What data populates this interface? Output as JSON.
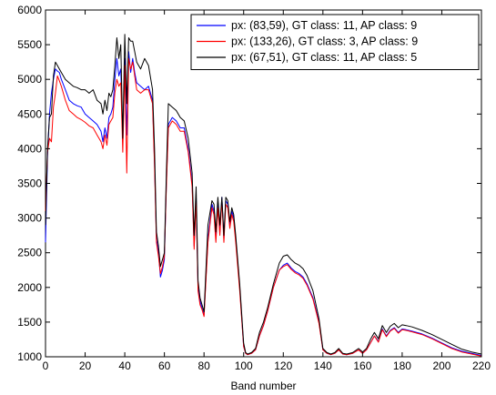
{
  "chart_data": {
    "type": "line",
    "xlabel": "Band number",
    "ylabel": "",
    "title": "",
    "xlim": [
      0,
      220
    ],
    "ylim": [
      1000,
      6000
    ],
    "xticks": [
      0,
      20,
      40,
      60,
      80,
      100,
      120,
      140,
      160,
      180,
      200,
      220
    ],
    "yticks": [
      1000,
      1500,
      2000,
      2500,
      3000,
      3500,
      4000,
      4500,
      5000,
      5500,
      6000
    ],
    "grid": false,
    "legend_position": "top-right",
    "series": [
      {
        "name": "px: (83,59), GT class: 11, AP class: 9",
        "color": "#0000ff",
        "x": [
          0,
          1,
          2,
          3,
          4,
          5,
          6,
          7,
          8,
          10,
          12,
          14,
          16,
          18,
          20,
          22,
          24,
          26,
          28,
          29,
          30,
          31,
          32,
          33,
          34,
          35,
          36,
          37,
          38,
          39,
          40,
          41,
          42,
          43,
          44,
          45,
          46,
          48,
          50,
          52,
          54,
          55,
          56,
          57,
          58,
          59,
          60,
          61,
          62,
          64,
          66,
          68,
          70,
          72,
          74,
          75,
          76,
          77,
          78,
          79,
          80,
          82,
          84,
          85,
          86,
          87,
          88,
          89,
          90,
          91,
          92,
          93,
          94,
          95,
          96,
          98,
          100,
          101,
          102,
          104,
          106,
          108,
          110,
          112,
          115,
          118,
          120,
          122,
          124,
          126,
          128,
          130,
          132,
          135,
          138,
          140,
          142,
          144,
          146,
          148,
          150,
          152,
          155,
          158,
          160,
          162,
          164,
          166,
          168,
          170,
          172,
          174,
          176,
          178,
          180,
          182,
          185,
          190,
          195,
          200,
          205,
          210,
          215,
          220
        ],
        "values": [
          2650,
          3900,
          4500,
          4800,
          5000,
          5150,
          5120,
          5100,
          5000,
          4850,
          4700,
          4650,
          4620,
          4600,
          4500,
          4450,
          4400,
          4350,
          4250,
          4100,
          4300,
          4150,
          4450,
          4500,
          4600,
          5000,
          5300,
          5050,
          5150,
          4100,
          5300,
          4200,
          5400,
          5100,
          5300,
          5100,
          4950,
          4900,
          4850,
          4900,
          4700,
          3800,
          2700,
          2500,
          2150,
          2250,
          2400,
          3500,
          4350,
          4450,
          4400,
          4300,
          4300,
          4000,
          3500,
          2600,
          3300,
          2000,
          1800,
          1700,
          1600,
          2700,
          3200,
          3100,
          2700,
          3200,
          2800,
          3300,
          2700,
          3250,
          3200,
          2900,
          3100,
          3000,
          2700,
          2000,
          1150,
          1050,
          1030,
          1050,
          1100,
          1300,
          1450,
          1650,
          2000,
          2250,
          2320,
          2350,
          2280,
          2230,
          2200,
          2150,
          2050,
          1850,
          1500,
          1100,
          1050,
          1030,
          1050,
          1100,
          1040,
          1030,
          1050,
          1100,
          1050,
          1100,
          1200,
          1300,
          1220,
          1400,
          1300,
          1380,
          1420,
          1350,
          1400,
          1390,
          1370,
          1330,
          1270,
          1200,
          1130,
          1080,
          1050,
          1020
        ]
      },
      {
        "name": "px: (133,26), GT class: 3, AP class: 9",
        "color": "#ff0000",
        "x": [
          0,
          1,
          2,
          3,
          4,
          5,
          6,
          7,
          8,
          10,
          12,
          14,
          16,
          18,
          20,
          22,
          24,
          26,
          28,
          29,
          30,
          31,
          32,
          33,
          34,
          35,
          36,
          37,
          38,
          39,
          40,
          41,
          42,
          43,
          44,
          45,
          46,
          48,
          50,
          52,
          54,
          55,
          56,
          57,
          58,
          59,
          60,
          61,
          62,
          64,
          66,
          68,
          70,
          72,
          74,
          75,
          76,
          77,
          78,
          79,
          80,
          82,
          84,
          85,
          86,
          87,
          88,
          89,
          90,
          91,
          92,
          93,
          94,
          95,
          96,
          98,
          100,
          101,
          102,
          104,
          106,
          108,
          110,
          112,
          115,
          118,
          120,
          122,
          124,
          126,
          128,
          130,
          132,
          135,
          138,
          140,
          142,
          144,
          146,
          148,
          150,
          152,
          155,
          158,
          160,
          162,
          164,
          166,
          168,
          170,
          172,
          174,
          176,
          178,
          180,
          182,
          185,
          190,
          195,
          200,
          205,
          210,
          215,
          220
        ],
        "values": [
          3100,
          3950,
          4150,
          4100,
          4600,
          4800,
          5050,
          4980,
          4900,
          4700,
          4550,
          4500,
          4450,
          4420,
          4380,
          4330,
          4300,
          4200,
          4100,
          4000,
          4200,
          4050,
          4350,
          4400,
          4450,
          4800,
          5000,
          4900,
          4950,
          3950,
          5200,
          3650,
          5300,
          5150,
          5250,
          5050,
          4850,
          4800,
          4850,
          4850,
          4650,
          3750,
          2650,
          2450,
          2200,
          2300,
          2450,
          3450,
          4300,
          4400,
          4350,
          4250,
          4250,
          3950,
          3450,
          2550,
          3250,
          1950,
          1750,
          1680,
          1580,
          2650,
          3150,
          3050,
          2650,
          3150,
          2750,
          3250,
          2650,
          3200,
          3150,
          2850,
          3050,
          2950,
          2650,
          1950,
          1150,
          1050,
          1030,
          1050,
          1100,
          1300,
          1450,
          1650,
          2000,
          2250,
          2300,
          2330,
          2260,
          2210,
          2180,
          2130,
          2030,
          1830,
          1480,
          1100,
          1050,
          1030,
          1050,
          1100,
          1040,
          1030,
          1050,
          1100,
          1050,
          1100,
          1200,
          1300,
          1210,
          1390,
          1290,
          1370,
          1410,
          1340,
          1390,
          1380,
          1360,
          1320,
          1260,
          1190,
          1120,
          1070,
          1040,
          1010
        ]
      },
      {
        "name": "px: (67,51), GT class: 11, AP class: 5",
        "color": "#000000",
        "x": [
          0,
          1,
          2,
          3,
          4,
          5,
          6,
          7,
          8,
          10,
          12,
          14,
          16,
          18,
          20,
          22,
          24,
          26,
          28,
          29,
          30,
          31,
          32,
          33,
          34,
          35,
          36,
          37,
          38,
          39,
          40,
          41,
          42,
          43,
          44,
          45,
          46,
          48,
          50,
          52,
          54,
          55,
          56,
          57,
          58,
          59,
          60,
          61,
          62,
          64,
          66,
          68,
          70,
          72,
          74,
          75,
          76,
          77,
          78,
          79,
          80,
          82,
          84,
          85,
          86,
          87,
          88,
          89,
          90,
          91,
          92,
          93,
          94,
          95,
          96,
          98,
          100,
          101,
          102,
          104,
          106,
          108,
          110,
          112,
          115,
          118,
          120,
          122,
          124,
          126,
          128,
          130,
          132,
          135,
          138,
          140,
          142,
          144,
          146,
          148,
          150,
          152,
          155,
          158,
          160,
          162,
          164,
          166,
          168,
          170,
          172,
          174,
          176,
          178,
          180,
          182,
          185,
          190,
          195,
          200,
          205,
          210,
          215,
          220
        ],
        "values": [
          2900,
          4000,
          4450,
          4500,
          5050,
          5250,
          5200,
          5150,
          5100,
          5000,
          4950,
          4900,
          4880,
          4850,
          4850,
          4800,
          4850,
          4700,
          4650,
          4500,
          4700,
          4550,
          4800,
          4750,
          4850,
          5200,
          5600,
          5300,
          5500,
          4150,
          5650,
          4650,
          5600,
          5550,
          5550,
          5400,
          5250,
          5150,
          5300,
          5200,
          4850,
          4000,
          2800,
          2600,
          2300,
          2400,
          2500,
          3650,
          4650,
          4600,
          4550,
          4450,
          4400,
          4150,
          3650,
          2750,
          3450,
          2100,
          1850,
          1750,
          1650,
          2900,
          3250,
          3200,
          2800,
          3300,
          2900,
          3300,
          2750,
          3300,
          3250,
          2950,
          3150,
          3050,
          2750,
          2050,
          1200,
          1060,
          1040,
          1060,
          1120,
          1350,
          1500,
          1700,
          2050,
          2350,
          2450,
          2470,
          2400,
          2350,
          2320,
          2270,
          2170,
          1950,
          1550,
          1120,
          1060,
          1040,
          1060,
          1120,
          1050,
          1040,
          1060,
          1120,
          1070,
          1120,
          1250,
          1350,
          1260,
          1450,
          1350,
          1440,
          1480,
          1420,
          1460,
          1450,
          1430,
          1380,
          1320,
          1250,
          1180,
          1110,
          1070,
          1040
        ]
      }
    ]
  }
}
